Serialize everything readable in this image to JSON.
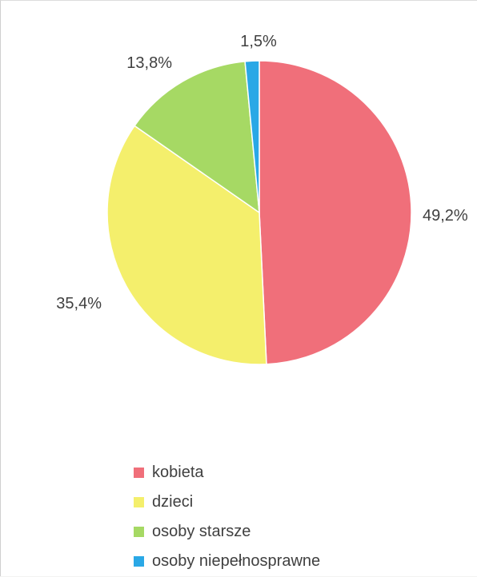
{
  "chart_data": {
    "type": "pie",
    "title": "",
    "series": [
      {
        "name": "kobieta",
        "value": 49.2,
        "label": "49,2%",
        "color": "#f06f7a"
      },
      {
        "name": "dzieci",
        "value": 35.4,
        "label": "35,4%",
        "color": "#f4ef6c"
      },
      {
        "name": "osoby starsze",
        "value": 13.8,
        "label": "13,8%",
        "color": "#a6d964"
      },
      {
        "name": "osoby niepełnosprawne",
        "value": 1.5,
        "label": "1,5%",
        "color": "#2aa8e6"
      }
    ],
    "legend": {
      "placement": "bottom"
    },
    "start_angle": "12 o'clock",
    "direction": "clockwise"
  }
}
